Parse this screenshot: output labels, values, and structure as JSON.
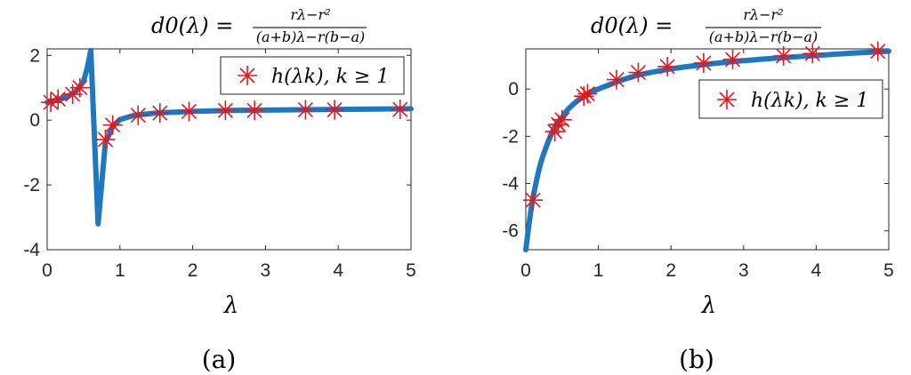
{
  "colors": {
    "curve": "#1f77bd",
    "marker": "#e8151b",
    "axis": "#262626"
  },
  "chart_data": [
    {
      "type": "line",
      "panel": "a",
      "caption": "(a)",
      "title": {
        "lhs": "d0(λ) =",
        "num": "rλ−r²",
        "den": "(a+b)λ−r(b−a)"
      },
      "xlabel": "λ",
      "ylabel": "",
      "xlim": [
        0,
        5
      ],
      "ylim": [
        -4,
        2.2
      ],
      "xticks": [
        0,
        1,
        2,
        3,
        4,
        5
      ],
      "yticks": [
        -4,
        -2,
        0,
        2
      ],
      "grid": false,
      "legend": {
        "placement": "top-right",
        "label": "h(λk), k ≥ 1"
      },
      "series": [
        {
          "role": "curve",
          "x": [
            0,
            0.1,
            0.2,
            0.3,
            0.4,
            0.5,
            0.55,
            0.6,
            0.7,
            0.8,
            0.9,
            1.0,
            1.2,
            1.5,
            2.0,
            2.5,
            3.0,
            3.5,
            4.0,
            4.5,
            5.0
          ],
          "y": [
            0.55,
            0.6,
            0.66,
            0.75,
            0.9,
            1.2,
            1.6,
            2.15,
            -3.2,
            -0.7,
            -0.2,
            0.02,
            0.15,
            0.22,
            0.27,
            0.3,
            0.31,
            0.32,
            0.33,
            0.34,
            0.35
          ]
        },
        {
          "role": "markers",
          "name": "h(λk), k ≥ 1",
          "x": [
            0.05,
            0.15,
            0.35,
            0.45,
            0.8,
            0.9,
            1.25,
            1.55,
            1.95,
            2.45,
            2.85,
            3.55,
            3.95,
            4.85
          ],
          "y": [
            0.55,
            0.65,
            0.8,
            1.0,
            -0.6,
            -0.15,
            0.15,
            0.22,
            0.27,
            0.3,
            0.3,
            0.32,
            0.32,
            0.33
          ]
        }
      ]
    },
    {
      "type": "line",
      "panel": "b",
      "caption": "(b)",
      "title": {
        "lhs": "d0(λ) =",
        "num": "rλ−r²",
        "den": "(a+b)λ−r(b−a)"
      },
      "xlabel": "λ",
      "ylabel": "",
      "xlim": [
        0,
        5
      ],
      "ylim": [
        -6.8,
        1.7
      ],
      "xticks": [
        0,
        1,
        2,
        3,
        4,
        5
      ],
      "yticks": [
        -6,
        -4,
        -2,
        0
      ],
      "grid": false,
      "legend": {
        "placement": "right",
        "label": "h(λk), k ≥ 1"
      },
      "series": [
        {
          "role": "curve",
          "x": [
            0,
            0.05,
            0.1,
            0.2,
            0.3,
            0.4,
            0.5,
            0.6,
            0.8,
            1.0,
            1.5,
            2.0,
            2.5,
            3.0,
            3.5,
            4.0,
            4.5,
            5.0
          ],
          "y": [
            -6.8,
            -5.6,
            -4.6,
            -3.2,
            -2.3,
            -1.6,
            -1.2,
            -0.8,
            -0.3,
            0.0,
            0.55,
            0.85,
            1.05,
            1.2,
            1.32,
            1.42,
            1.52,
            1.6
          ],
          "smooth": true
        },
        {
          "role": "markers",
          "name": "h(λk), k ≥ 1",
          "x": [
            0.1,
            0.4,
            0.45,
            0.5,
            0.8,
            0.85,
            1.25,
            1.55,
            1.95,
            2.45,
            2.85,
            3.55,
            3.95,
            4.85
          ],
          "y": [
            -4.7,
            -1.8,
            -1.5,
            -1.3,
            -0.3,
            -0.2,
            0.4,
            0.7,
            0.95,
            1.1,
            1.25,
            1.4,
            1.5,
            1.6
          ]
        }
      ]
    }
  ]
}
